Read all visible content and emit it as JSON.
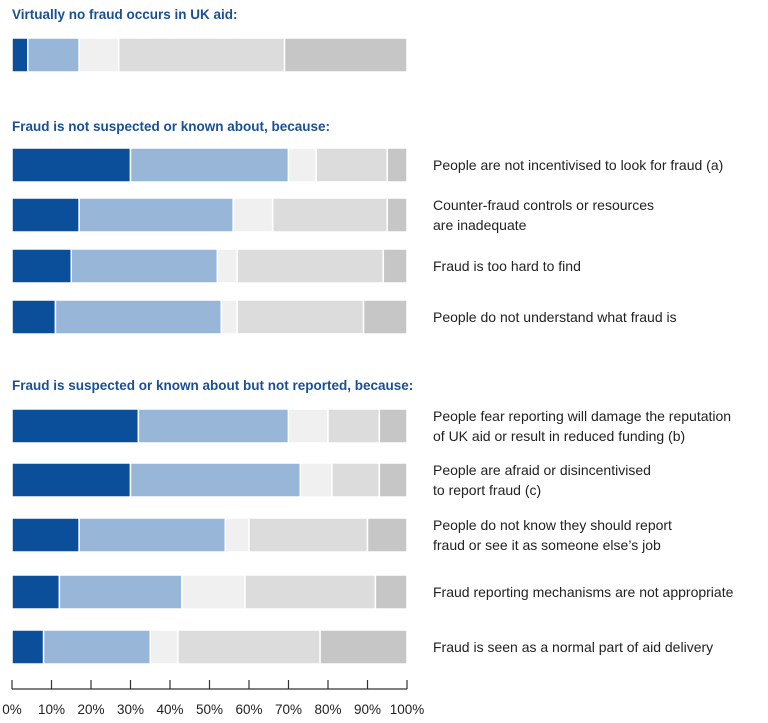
{
  "chart_data": {
    "type": "bar",
    "orientation": "horizontal",
    "stacked": true,
    "percent_scale": true,
    "xlim": [
      0,
      100
    ],
    "x_ticks": [
      "0%",
      "10%",
      "20%",
      "30%",
      "40%",
      "50%",
      "60%",
      "70%",
      "80%",
      "90%",
      "100%"
    ],
    "segment_colors": [
      "#0b4e9a",
      "#98b6d8",
      "#f0f0f0",
      "#dcdcdc",
      "#c6c6c6"
    ],
    "sections": [
      {
        "title": "Virtually no fraud occurs in UK aid:",
        "rows": [
          {
            "label": [],
            "values": [
              4,
              13,
              10,
              42,
              31
            ]
          }
        ]
      },
      {
        "title": "Fraud is not suspected or known about, because:",
        "rows": [
          {
            "label": [
              "People are not incentivised to look for fraud (a)"
            ],
            "values": [
              30,
              40,
              7,
              18,
              5
            ]
          },
          {
            "label": [
              "Counter-fraud controls or resources",
              "are inadequate"
            ],
            "values": [
              17,
              39,
              10,
              29,
              5
            ]
          },
          {
            "label": [
              "Fraud is too hard to find"
            ],
            "values": [
              15,
              37,
              5,
              37,
              6
            ]
          },
          {
            "label": [
              "People do not understand what fraud is"
            ],
            "values": [
              11,
              42,
              4,
              32,
              11
            ]
          }
        ]
      },
      {
        "title": "Fraud is suspected or known about but not reported, because:",
        "rows": [
          {
            "label": [
              "People fear reporting will damage the reputation",
              "of UK aid or result in reduced funding (b)"
            ],
            "values": [
              32,
              38,
              10,
              13,
              7
            ]
          },
          {
            "label": [
              "People are afraid or disincentivised",
              "to report fraud (c)"
            ],
            "values": [
              30,
              43,
              8,
              12,
              7
            ]
          },
          {
            "label": [
              "People do not know they should report",
              "fraud or see it as someone else’s job"
            ],
            "values": [
              17,
              37,
              6,
              30,
              10
            ]
          },
          {
            "label": [
              "Fraud reporting mechanisms are not appropriate"
            ],
            "values": [
              12,
              31,
              16,
              33,
              8
            ]
          },
          {
            "label": [
              "Fraud is seen as a normal part of aid delivery"
            ],
            "values": [
              8,
              27,
              7,
              36,
              22
            ]
          }
        ]
      }
    ]
  }
}
